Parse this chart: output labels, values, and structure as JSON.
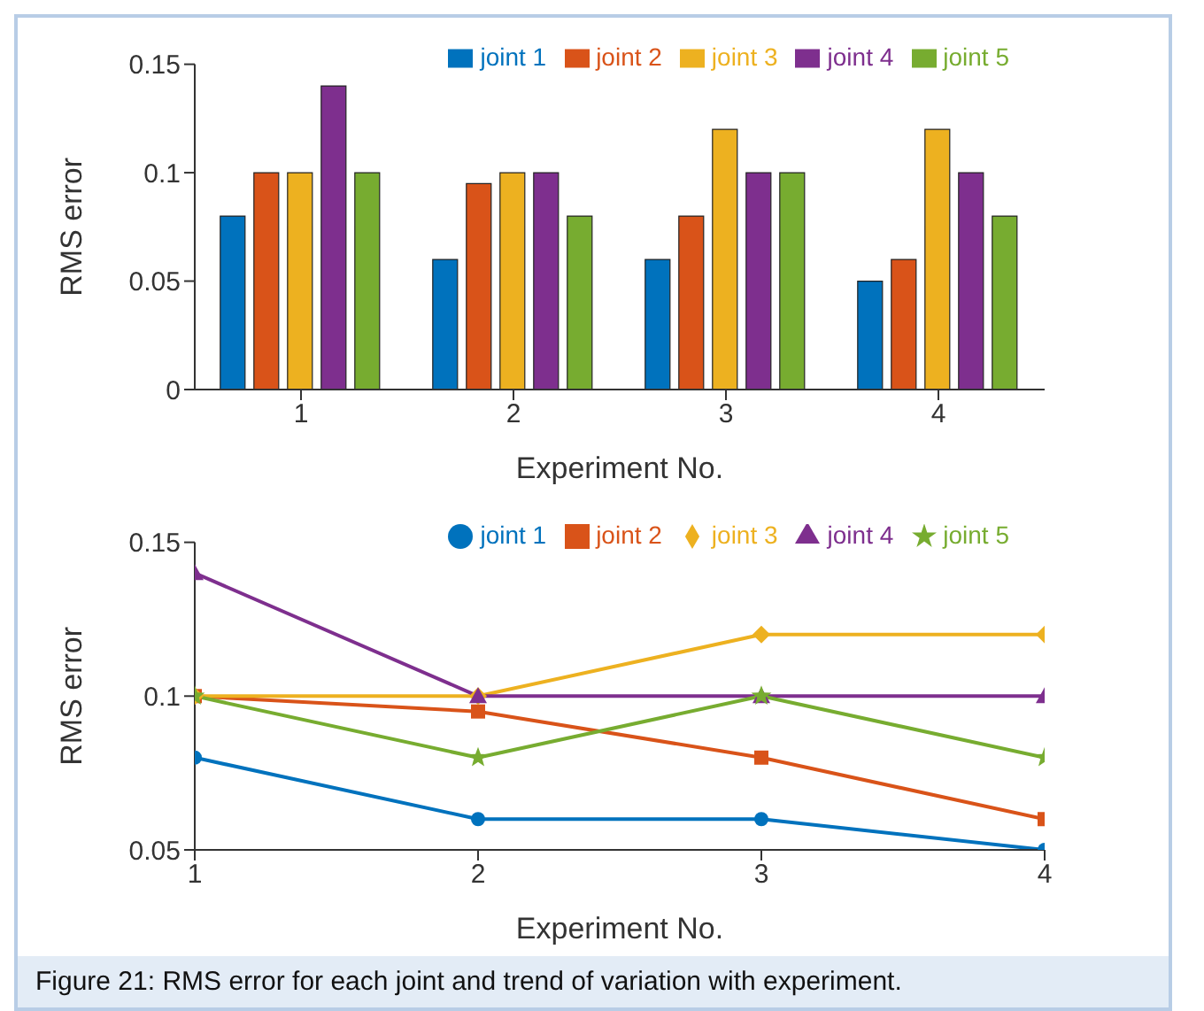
{
  "chart_data": [
    {
      "type": "bar",
      "xlabel": "Experiment No.",
      "ylabel": "RMS error",
      "categories": [
        "1",
        "2",
        "3",
        "4"
      ],
      "ylim": [
        0,
        0.15
      ],
      "yticks": [
        0,
        0.05,
        0.1,
        0.15
      ],
      "legend": "top right",
      "series": [
        {
          "name": "joint 1",
          "color": "#0072bd",
          "values": [
            0.08,
            0.06,
            0.06,
            0.05
          ]
        },
        {
          "name": "joint 2",
          "color": "#d95319",
          "values": [
            0.1,
            0.095,
            0.08,
            0.06
          ]
        },
        {
          "name": "joint 3",
          "color": "#edb120",
          "values": [
            0.1,
            0.1,
            0.12,
            0.12
          ]
        },
        {
          "name": "joint 4",
          "color": "#7e2f8e",
          "values": [
            0.14,
            0.1,
            0.1,
            0.1
          ]
        },
        {
          "name": "joint 5",
          "color": "#77ac30",
          "values": [
            0.1,
            0.08,
            0.1,
            0.08
          ]
        }
      ]
    },
    {
      "type": "line",
      "xlabel": "Experiment No.",
      "ylabel": "RMS error",
      "x": [
        1,
        2,
        3,
        4
      ],
      "xlim": [
        1,
        4
      ],
      "xticks": [
        1,
        2,
        3,
        4
      ],
      "ylim": [
        0.05,
        0.15
      ],
      "yticks": [
        0.05,
        0.1,
        0.15
      ],
      "legend": "top right",
      "line_style": "solid",
      "annotations": [
        "Figure 21: RMS error for each joint and trend of variation with experiment."
      ],
      "series": [
        {
          "name": "joint 1",
          "color": "#0072bd",
          "marker": "circle",
          "values": [
            0.08,
            0.06,
            0.06,
            0.05
          ]
        },
        {
          "name": "joint 2",
          "color": "#d95319",
          "marker": "square",
          "values": [
            0.1,
            0.095,
            0.08,
            0.06
          ]
        },
        {
          "name": "joint 3",
          "color": "#edb120",
          "marker": "diamond",
          "values": [
            0.1,
            0.1,
            0.12,
            0.12
          ]
        },
        {
          "name": "joint 4",
          "color": "#7e2f8e",
          "marker": "triangle",
          "values": [
            0.14,
            0.1,
            0.1,
            0.1
          ]
        },
        {
          "name": "joint 5",
          "color": "#77ac30",
          "marker": "star",
          "values": [
            0.1,
            0.08,
            0.1,
            0.08
          ]
        }
      ]
    }
  ]
}
